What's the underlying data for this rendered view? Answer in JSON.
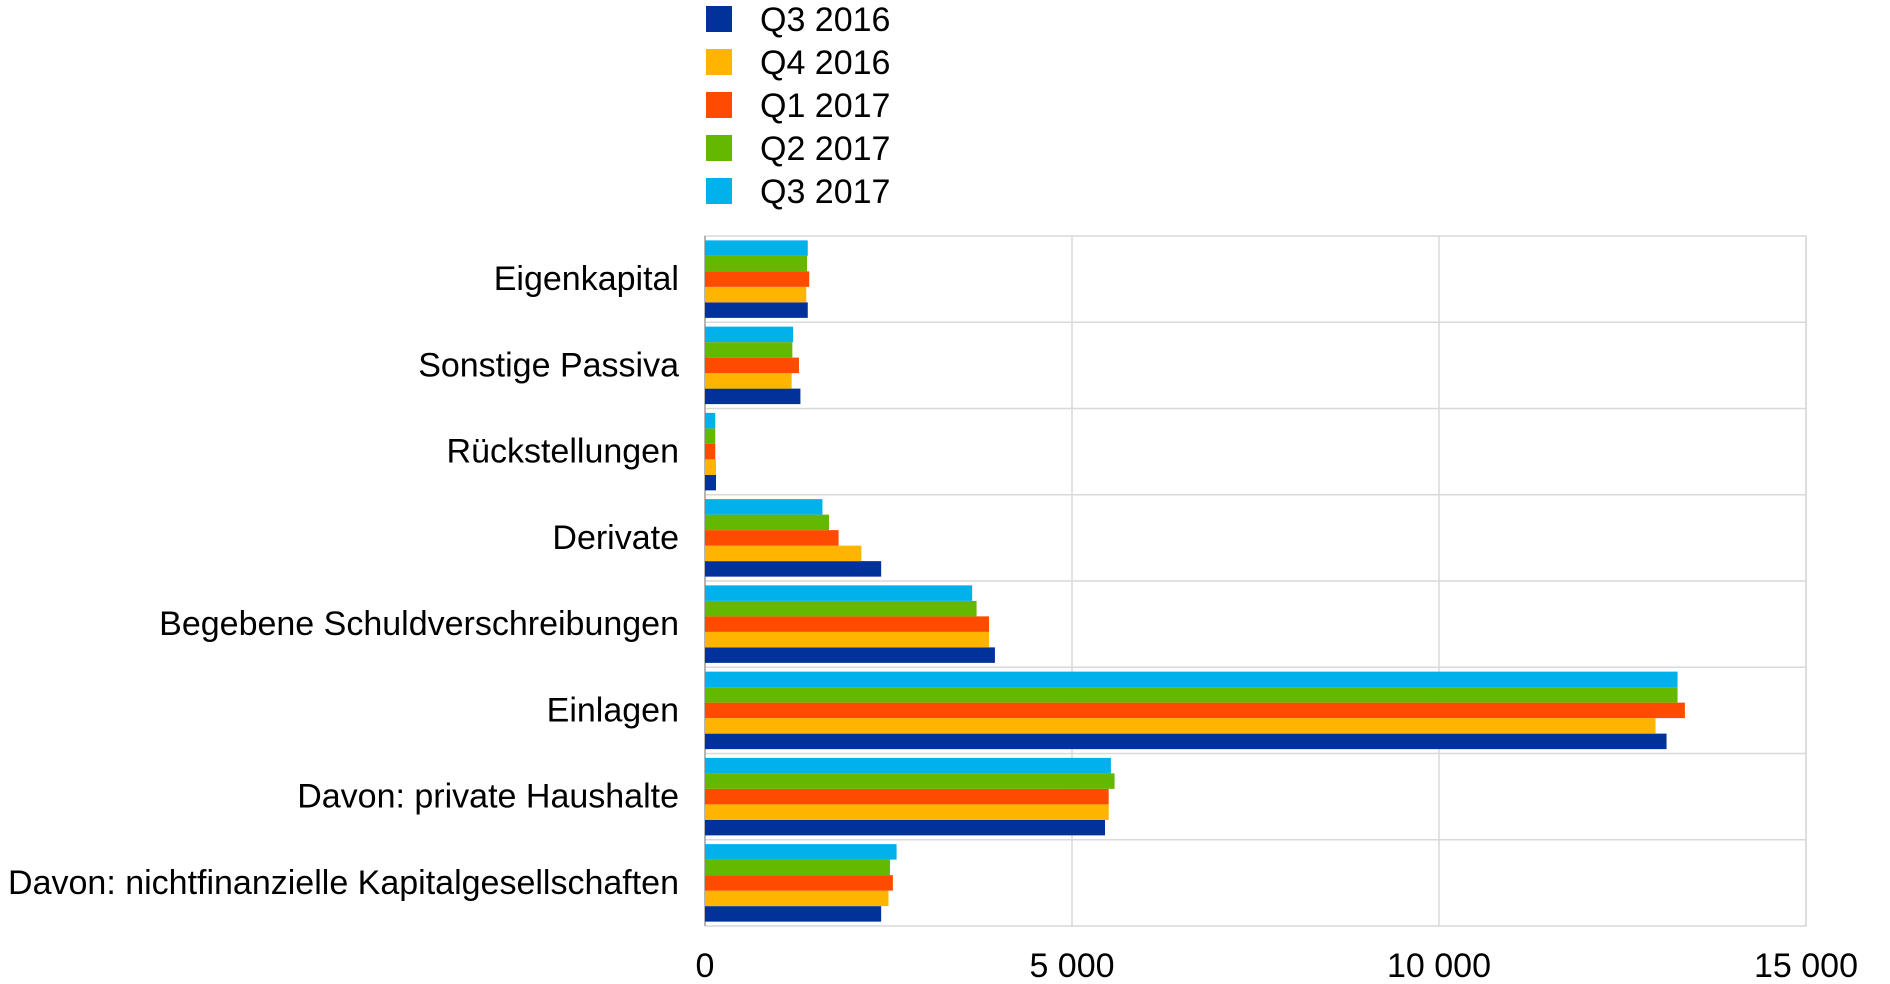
{
  "chart_data": {
    "type": "bar",
    "orientation": "horizontal",
    "categories": [
      "Eigenkapital",
      "Sonstige Passiva",
      "Rückstellungen",
      "Derivate",
      "Begebene Schuldverschreibungen",
      "Einlagen",
      "Davon: private Haushalte",
      "Davon: nichtfinanzielle Kapitalgesellschaften"
    ],
    "series": [
      {
        "name": "Q3 2016",
        "color": "#003299",
        "values": [
          1400,
          1300,
          150,
          2400,
          3950,
          13100,
          5450,
          2400
        ]
      },
      {
        "name": "Q4 2016",
        "color": "#FFB400",
        "values": [
          1380,
          1180,
          150,
          2130,
          3870,
          12950,
          5500,
          2500
        ]
      },
      {
        "name": "Q1 2017",
        "color": "#FF4B00",
        "values": [
          1420,
          1280,
          140,
          1820,
          3870,
          13350,
          5500,
          2560
        ]
      },
      {
        "name": "Q2 2017",
        "color": "#65B800",
        "values": [
          1390,
          1190,
          140,
          1690,
          3700,
          13250,
          5580,
          2520
        ]
      },
      {
        "name": "Q3 2017",
        "color": "#00B1EA",
        "values": [
          1400,
          1200,
          140,
          1600,
          3640,
          13250,
          5530,
          2610
        ]
      }
    ],
    "x_ticks": [
      "0",
      "5 000",
      "10 000",
      "15 000"
    ],
    "xlim": [
      0,
      15000
    ],
    "grid": true,
    "legend_position": "top-left"
  }
}
